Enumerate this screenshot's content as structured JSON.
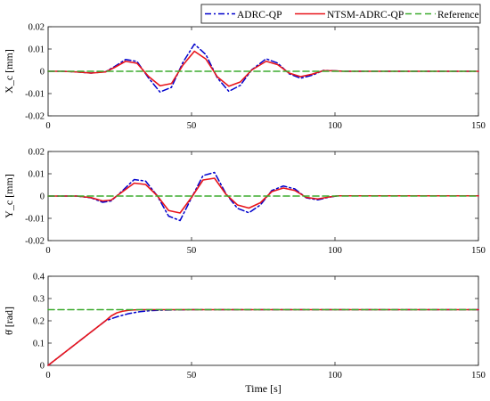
{
  "legend": {
    "placement": "top-right",
    "items": [
      {
        "label": "ADRC-QP",
        "color": "#0000cc",
        "dash": "dashdot"
      },
      {
        "label": "NTSM-ADRC-QP",
        "color": "#e8141a",
        "dash": "solid"
      },
      {
        "label": "Reference",
        "color": "#3cab2e",
        "dash": "dashed"
      }
    ]
  },
  "chart_data": [
    {
      "type": "line",
      "ylabel": "X_c [mm]",
      "xlabel": "",
      "xlim": [
        0,
        150
      ],
      "ylim": [
        -0.02,
        0.02
      ],
      "xticks": [
        "0",
        "50",
        "100",
        "150"
      ],
      "yticks": [
        "0.02",
        "0.01",
        "0",
        "-0.01",
        "-0.02"
      ],
      "series": [
        {
          "name": "ADRC-QP",
          "x": [
            0,
            5,
            10,
            15,
            20,
            23,
            27,
            31,
            35,
            39,
            43,
            47,
            51,
            55,
            59,
            63,
            67,
            71,
            76,
            80,
            84,
            88,
            92,
            96,
            100,
            103,
            106,
            110,
            150
          ],
          "y": [
            0,
            0,
            -0.0003,
            -0.0008,
            -0.0002,
            0.002,
            0.0053,
            0.0044,
            -0.003,
            -0.0093,
            -0.0072,
            0.004,
            0.0122,
            0.0075,
            -0.003,
            -0.009,
            -0.0063,
            0.0007,
            0.0056,
            0.0037,
            -0.0011,
            -0.0031,
            -0.0018,
            0.0004,
            0.0002,
            0,
            0,
            0,
            0
          ]
        },
        {
          "name": "NTSM-ADRC-QP",
          "x": [
            0,
            5,
            10,
            15,
            20,
            23,
            27,
            31,
            35,
            39,
            43,
            47,
            51,
            55,
            59,
            63,
            67,
            71,
            76,
            80,
            84,
            88,
            92,
            96,
            100,
            103,
            106,
            110,
            150
          ],
          "y": [
            0,
            0,
            -0.0003,
            -0.0008,
            -0.0003,
            0.0016,
            0.0045,
            0.0036,
            -0.0023,
            -0.0065,
            -0.0055,
            0.0028,
            0.009,
            0.0055,
            -0.0025,
            -0.0067,
            -0.0048,
            0.0006,
            0.0045,
            0.003,
            -0.0008,
            -0.0024,
            -0.0013,
            0.0003,
            0.0002,
            0,
            0,
            0,
            0
          ]
        },
        {
          "name": "Reference",
          "x": [
            0,
            150
          ],
          "y": [
            0,
            0
          ]
        }
      ]
    },
    {
      "type": "line",
      "ylabel": "Y_c [mm]",
      "xlabel": "",
      "xlim": [
        0,
        150
      ],
      "ylim": [
        -0.02,
        0.02
      ],
      "xticks": [
        "0",
        "50",
        "100",
        "150"
      ],
      "yticks": [
        "0.02",
        "0.01",
        "0",
        "-0.01",
        "-0.02"
      ],
      "series": [
        {
          "name": "ADRC-QP",
          "x": [
            0,
            5,
            10,
            15,
            19,
            22,
            26,
            30,
            34,
            38,
            42,
            46,
            50,
            54,
            58,
            62,
            66,
            70,
            74,
            78,
            82,
            86,
            90,
            94,
            98,
            101,
            104,
            150
          ],
          "y": [
            0,
            0,
            0,
            -0.0008,
            -0.0028,
            -0.0022,
            0.0025,
            0.0074,
            0.0067,
            0.0002,
            -0.009,
            -0.011,
            -0.0008,
            0.0092,
            0.0106,
            0.001,
            -0.0055,
            -0.0075,
            -0.004,
            0.0025,
            0.0045,
            0.0032,
            -0.0008,
            -0.0017,
            -0.0005,
            0.0001,
            0.0001,
            0.0001
          ]
        },
        {
          "name": "NTSM-ADRC-QP",
          "x": [
            0,
            5,
            10,
            15,
            19,
            22,
            26,
            30,
            34,
            38,
            42,
            46,
            50,
            54,
            58,
            62,
            66,
            70,
            74,
            78,
            82,
            86,
            90,
            94,
            98,
            101,
            104,
            150
          ],
          "y": [
            0,
            0,
            0,
            -0.0007,
            -0.0022,
            -0.0018,
            0.002,
            0.0058,
            0.0052,
            0.0002,
            -0.0065,
            -0.0076,
            -0.0006,
            0.0072,
            0.008,
            0.0008,
            -0.004,
            -0.0054,
            -0.003,
            0.002,
            0.0036,
            0.0025,
            -0.0006,
            -0.0013,
            -0.0004,
            0.0001,
            0.0001,
            0.0001
          ]
        },
        {
          "name": "Reference",
          "x": [
            0,
            150
          ],
          "y": [
            0,
            0
          ]
        }
      ]
    },
    {
      "type": "line",
      "ylabel": "θ̇ [rad]",
      "xlabel": "Time [s]",
      "xlim": [
        0,
        150
      ],
      "ylim": [
        0,
        0.4
      ],
      "xticks": [
        "0",
        "50",
        "100",
        "150"
      ],
      "yticks": [
        "0.4",
        "0.3",
        "0.2",
        "0.1",
        "0"
      ],
      "series": [
        {
          "name": "ADRC-QP",
          "x": [
            0,
            10,
            20,
            24,
            28,
            32,
            36,
            40,
            45,
            50,
            60,
            150
          ],
          "y": [
            0,
            0.1,
            0.2,
            0.218,
            0.232,
            0.241,
            0.246,
            0.248,
            0.249,
            0.25,
            0.25,
            0.25
          ]
        },
        {
          "name": "NTSM-ADRC-QP",
          "x": [
            0,
            10,
            20,
            22,
            24,
            26,
            28,
            30,
            33,
            36,
            40,
            150
          ],
          "y": [
            0,
            0.1,
            0.2,
            0.222,
            0.236,
            0.243,
            0.247,
            0.249,
            0.25,
            0.25,
            0.25,
            0.25
          ]
        },
        {
          "name": "Reference",
          "x": [
            0,
            150
          ],
          "y": [
            0.25,
            0.25
          ]
        }
      ]
    }
  ]
}
